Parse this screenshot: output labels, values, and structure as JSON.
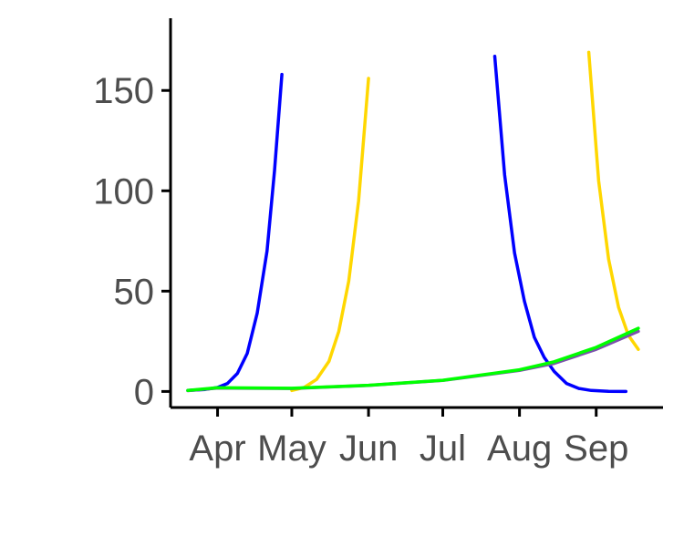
{
  "chart_data": {
    "type": "line",
    "title": "",
    "xlabel": "",
    "ylabel": "",
    "x_axis": {
      "type": "date",
      "range": [
        "2023-03-13",
        "2023-09-28"
      ],
      "ticks": [
        {
          "date": "2023-04-01",
          "label": "Apr"
        },
        {
          "date": "2023-05-01",
          "label": "May"
        },
        {
          "date": "2023-06-01",
          "label": "Jun"
        },
        {
          "date": "2023-07-01",
          "label": "Jul"
        },
        {
          "date": "2023-08-01",
          "label": "Aug"
        },
        {
          "date": "2023-09-01",
          "label": "Sep"
        }
      ]
    },
    "y_axis": {
      "range": [
        -8,
        186
      ],
      "ticks": [
        0,
        50,
        100,
        150
      ]
    },
    "grid": false,
    "legend": "none",
    "series": [
      {
        "color": "#0000ff",
        "points": [
          [
            "2023-03-20",
            0.5
          ],
          [
            "2023-03-27",
            1.0
          ],
          [
            "2023-04-01",
            2.0
          ],
          [
            "2023-04-05",
            4.0
          ],
          [
            "2023-04-09",
            9.0
          ],
          [
            "2023-04-13",
            19.0
          ],
          [
            "2023-04-17",
            39.0
          ],
          [
            "2023-04-21",
            70.0
          ],
          [
            "2023-04-24",
            110.0
          ],
          [
            "2023-04-27",
            158.0
          ]
        ]
      },
      {
        "color": "#0000ff",
        "points": [
          [
            "2023-07-22",
            167.0
          ],
          [
            "2023-07-26",
            108.0
          ],
          [
            "2023-07-30",
            69.0
          ],
          [
            "2023-08-03",
            45.0
          ],
          [
            "2023-08-07",
            27.0
          ],
          [
            "2023-08-11",
            17.0
          ],
          [
            "2023-08-15",
            10.0
          ],
          [
            "2023-08-20",
            4.0
          ],
          [
            "2023-08-25",
            1.5
          ],
          [
            "2023-08-30",
            0.5
          ],
          [
            "2023-09-06",
            0.1
          ],
          [
            "2023-09-13",
            0.0
          ]
        ]
      },
      {
        "color": "#ffd700",
        "points": [
          [
            "2023-05-01",
            0.5
          ],
          [
            "2023-05-06",
            2.0
          ],
          [
            "2023-05-11",
            6.0
          ],
          [
            "2023-05-16",
            15.0
          ],
          [
            "2023-05-20",
            30.0
          ],
          [
            "2023-05-24",
            55.0
          ],
          [
            "2023-05-28",
            95.0
          ],
          [
            "2023-06-01",
            156.0
          ]
        ]
      },
      {
        "color": "#ffd700",
        "points": [
          [
            "2023-08-29",
            169.0
          ],
          [
            "2023-09-02",
            105.0
          ],
          [
            "2023-09-06",
            66.0
          ],
          [
            "2023-09-10",
            42.0
          ],
          [
            "2023-09-14",
            28.0
          ],
          [
            "2023-09-18",
            21.0
          ]
        ]
      },
      {
        "color": "#7b52ab",
        "points": [
          [
            "2023-03-20",
            0.4
          ],
          [
            "2023-04-01",
            1.7
          ],
          [
            "2023-05-01",
            1.5
          ],
          [
            "2023-06-01",
            3.0
          ],
          [
            "2023-07-01",
            5.5
          ],
          [
            "2023-08-01",
            10.5
          ],
          [
            "2023-08-15",
            14.0
          ],
          [
            "2023-09-01",
            21.0
          ],
          [
            "2023-09-18",
            30.0
          ]
        ]
      },
      {
        "color": "#00ff00",
        "points": [
          [
            "2023-03-20",
            0.5
          ],
          [
            "2023-04-01",
            1.9
          ],
          [
            "2023-05-01",
            1.6
          ],
          [
            "2023-06-01",
            3.1
          ],
          [
            "2023-07-01",
            5.6
          ],
          [
            "2023-08-01",
            10.8
          ],
          [
            "2023-08-15",
            14.8
          ],
          [
            "2023-09-01",
            22.0
          ],
          [
            "2023-09-18",
            31.5
          ]
        ]
      }
    ]
  }
}
